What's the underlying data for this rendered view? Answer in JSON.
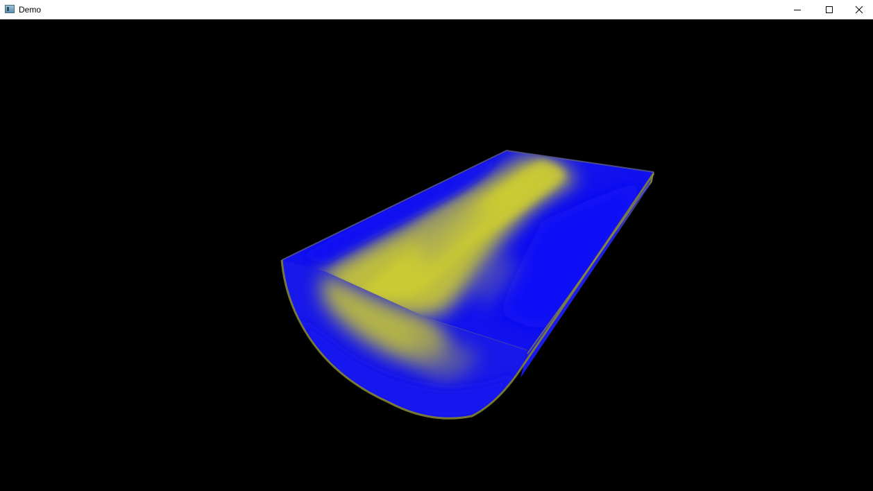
{
  "window": {
    "title": "Demo",
    "app_icon": "app-window-icon",
    "controls": {
      "minimize_icon": "minimize-icon",
      "maximize_icon": "maximize-icon",
      "close_icon": "close-icon"
    }
  },
  "scene": {
    "description_colors": {
      "background": "#000000",
      "low_value": "#1010f0",
      "high_value": "#c8c832",
      "edge": "#8a8a2a"
    }
  }
}
